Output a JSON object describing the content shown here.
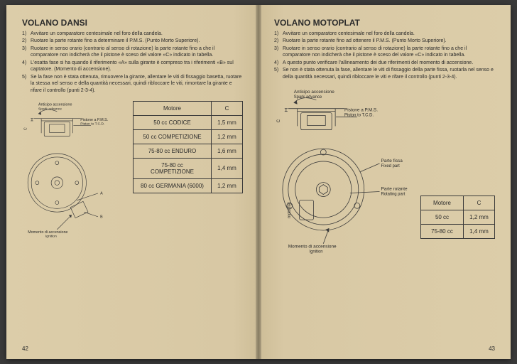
{
  "left": {
    "title": "VOLANO DANSI",
    "steps": [
      "Avvitare un comparatore centesimale nel foro della candela.",
      "Ruotare la parte rotante fino a determinare il P.M.S. (Punto Morto Superiore).",
      "Ruotare in senso orario (contrario al senso di rotazione) la parte rotante fino a che il comparatore non indicherà che il pistone è sceso del valore «C» indicato in tabella.",
      "L'esatta fase si ha quando il riferimento «A» sulla girante è compreso tra i riferimenti «B» sul captatore. (Momento di accensione).",
      "Se la fase non è stata ottenuta, rimuovere la girante, allentare le viti di fissaggio basetta, ruotare la stessa nel senso e della quantità necessari, quindi ribloccare le viti, rimontare la girante e rifare il controllo (punti 2-3-4)."
    ],
    "diagram": {
      "anticipo": "Anticipo accensione",
      "spark": "Spark advance",
      "pistone": "Pistone a P.M.S.",
      "piston": "Piston to T.C.D.",
      "c": "C",
      "a": "A",
      "b": "B",
      "momento": "Momento di accensione",
      "ignition": "Ignition",
      "stroke": "#3a3a3a",
      "fill": "none"
    },
    "table": {
      "head": [
        "Motore",
        "C"
      ],
      "rows": [
        [
          "50 cc CODICE",
          "1,5 mm"
        ],
        [
          "50 cc COMPETIZIONE",
          "1,2 mm"
        ],
        [
          "75-80 cc ENDURO",
          "1,6 mm"
        ],
        [
          "75-80 cc COMPETIZIONE",
          "1,4 mm"
        ],
        [
          "80 cc GERMANIA (6000)",
          "1,2 mm"
        ]
      ],
      "col_widths": [
        "110px",
        "44px"
      ]
    },
    "page_num": "42"
  },
  "right": {
    "title": "VOLANO MOTOPLAT",
    "steps": [
      "Avvitare un comparatore centesimale nel foro della candela.",
      "Ruotare la parte rotante fino ad ottenere il P.M.S. (Punto Morto Superiore).",
      "Ruotare in senso orario (contrario al senso di rotazione) la parte rotante fino a che il comparatore non indicherà che il pistone è sceso del valore «C» indicato in tabella.",
      "A questo punto verificare l'allineamento dei due riferimenti del momento di accensione.",
      "Se non è stata ottenuta la fase, allentare le viti di fissaggio della parte fissa, ruotarla nel senso e della quantità necessari, quindi ribloccare le viti e rifare il controllo (punti 2-3-4)."
    ],
    "diagram": {
      "anticipo": "Anticipo accensione",
      "spark": "Spark advance",
      "pistone": "Pistone a P.M.S.",
      "piston": "Piston to T.C.D.",
      "c": "C",
      "parte_fissa": "Parte fissa",
      "fixed": "Fixed part",
      "parte_rotante": "Parte rotante",
      "rotating": "Rotating part",
      "motoplat": "motoplat electronic",
      "momento": "Momento di accensione",
      "ignition": "Ignition",
      "stroke": "#3a3a3a",
      "fill": "none"
    },
    "table": {
      "head": [
        "Motore",
        "C"
      ],
      "rows": [
        [
          "50 cc",
          "1,2 mm"
        ],
        [
          "75-80 cc",
          "1,4 mm"
        ]
      ],
      "col_widths": [
        "60px",
        "44px"
      ]
    },
    "page_num": "43"
  }
}
